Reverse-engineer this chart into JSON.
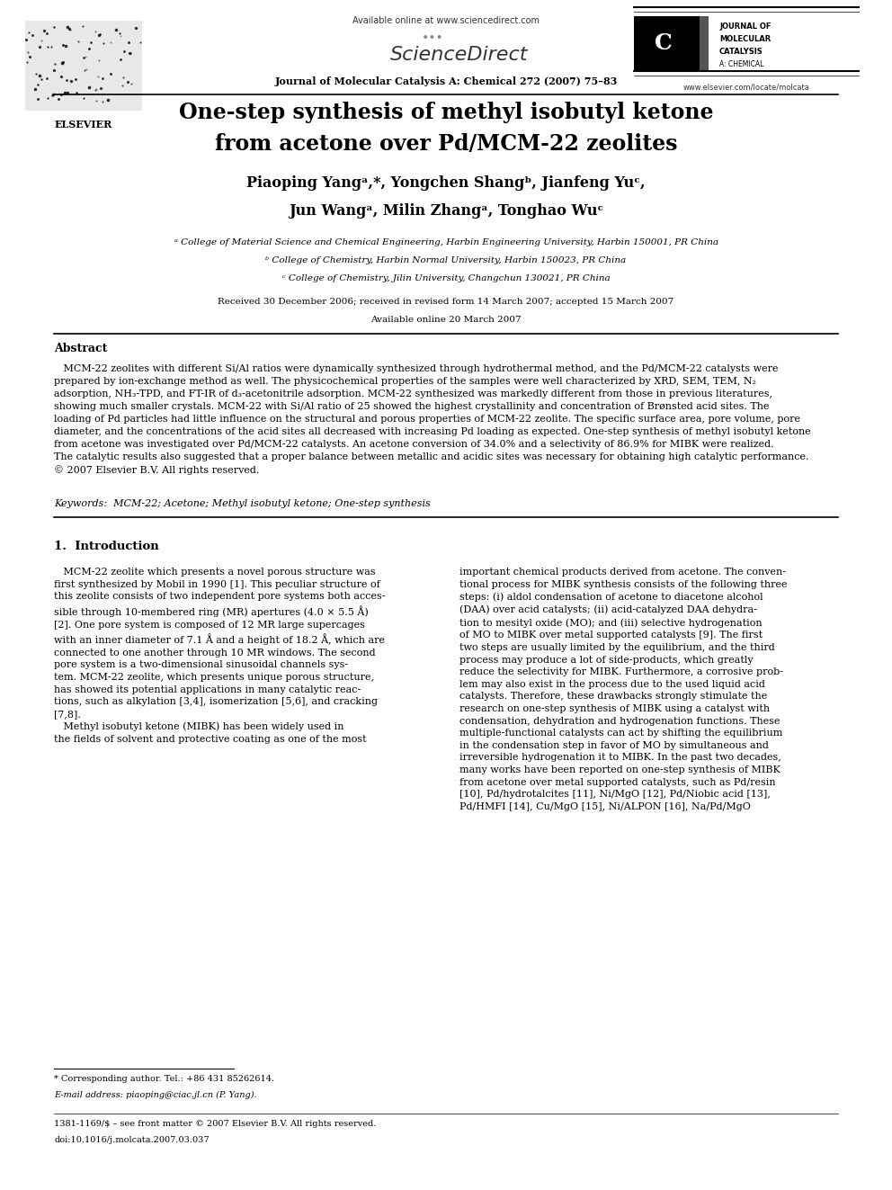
{
  "page_width": 9.92,
  "page_height": 13.23,
  "bg_color": "#ffffff",
  "available_online": "Available online at www.sciencedirect.com",
  "sciencedirect": "ScienceDirect",
  "journal_name": "Journal of Molecular Catalysis A: Chemical 272 (2007) 75–83",
  "journal_right_line1": "JOURNAL OF",
  "journal_right_line2": "MOLECULAR",
  "journal_right_line3": "CATALYSIS",
  "journal_right_line4": "A: CHEMICAL",
  "website": "www.elsevier.com/locate/molcata",
  "elsevier_label": "ELSEVIER",
  "title_line1": "One-step synthesis of methyl isobutyl ketone",
  "title_line2": "from acetone over Pd/MCM-22 zeolites",
  "author_line1": "Piaoping Yangᵃ,*, Yongchen Shangᵇ, Jianfeng Yuᶜ,",
  "author_line2": "Jun Wangᵃ, Milin Zhangᵃ, Tonghao Wuᶜ",
  "affil_a": "ᵃ College of Material Science and Chemical Engineering, Harbin Engineering University, Harbin 150001, PR China",
  "affil_b": "ᵇ College of Chemistry, Harbin Normal University, Harbin 150023, PR China",
  "affil_c": "ᶜ College of Chemistry, Jilin University, Changchun 130021, PR China",
  "received": "Received 30 December 2006; received in revised form 14 March 2007; accepted 15 March 2007",
  "available_date": "Available online 20 March 2007",
  "abstract_title": "Abstract",
  "abstract_body": "   MCM-22 zeolites with different Si/Al ratios were dynamically synthesized through hydrothermal method, and the Pd/MCM-22 catalysts were\nprepared by ion-exchange method as well. The physicochemical properties of the samples were well characterized by XRD, SEM, TEM, N₂\nadsorption, NH₃-TPD, and FT-IR of d₃-acetonitrile adsorption. MCM-22 synthesized was markedly different from those in previous literatures,\nshowing much smaller crystals. MCM-22 with Si/Al ratio of 25 showed the highest crystallinity and concentration of Brønsted acid sites. The\nloading of Pd particles had little influence on the structural and porous properties of MCM-22 zeolite. The specific surface area, pore volume, pore\ndiameter, and the concentrations of the acid sites all decreased with increasing Pd loading as expected. One-step synthesis of methyl isobutyl ketone\nfrom acetone was investigated over Pd/MCM-22 catalysts. An acetone conversion of 34.0% and a selectivity of 86.9% for MIBK were realized.\nThe catalytic results also suggested that a proper balance between metallic and acidic sites was necessary for obtaining high catalytic performance.\n© 2007 Elsevier B.V. All rights reserved.",
  "keywords": "Keywords:  MCM-22; Acetone; Methyl isobutyl ketone; One-step synthesis",
  "section1_title": "1.  Introduction",
  "intro_left": "   MCM-22 zeolite which presents a novel porous structure was\nfirst synthesized by Mobil in 1990 [1]. This peculiar structure of\nthis zeolite consists of two independent pore systems both acces-\nsible through 10-membered ring (MR) apertures (4.0 × 5.5 Å)\n[2]. One pore system is composed of 12 MR large supercages\nwith an inner diameter of 7.1 Å and a height of 18.2 Å, which are\nconnected to one another through 10 MR windows. The second\npore system is a two-dimensional sinusoidal channels sys-\ntem. MCM-22 zeolite, which presents unique porous structure,\nhas showed its potential applications in many catalytic reac-\ntions, such as alkylation [3,4], isomerization [5,6], and cracking\n[7,8].\n   Methyl isobutyl ketone (MIBK) has been widely used in\nthe fields of solvent and protective coating as one of the most",
  "intro_right": "important chemical products derived from acetone. The conven-\ntional process for MIBK synthesis consists of the following three\nsteps: (i) aldol condensation of acetone to diacetone alcohol\n(DAA) over acid catalysts; (ii) acid-catalyzed DAA dehydra-\ntion to mesityl oxide (MO); and (iii) selective hydrogenation\nof MO to MIBK over metal supported catalysts [9]. The first\ntwo steps are usually limited by the equilibrium, and the third\nprocess may produce a lot of side-products, which greatly\nreduce the selectivity for MIBK. Furthermore, a corrosive prob-\nlem may also exist in the process due to the used liquid acid\ncatalysts. Therefore, these drawbacks strongly stimulate the\nresearch on one-step synthesis of MIBK using a catalyst with\ncondensation, dehydration and hydrogenation functions. These\nmultiple-functional catalysts can act by shifting the equilibrium\nin the condensation step in favor of MO by simultaneous and\nirreversible hydrogenation it to MIBK. In the past two decades,\nmany works have been reported on one-step synthesis of MIBK\nfrom acetone over metal supported catalysts, such as Pd/resin\n[10], Pd/hydrotalcites [11], Ni/MgO [12], Pd/Niobic acid [13],\nPd/HMFI [14], Cu/MgO [15], Ni/ALPON [16], Na/Pd/MgO",
  "footnote_star": "* Corresponding author. Tel.: +86 431 85262614.",
  "footnote_email": "E-mail address: piaoping@ciac.jl.cn (P. Yang).",
  "footer_issn": "1381-1169/$ – see front matter © 2007 Elsevier B.V. All rights reserved.",
  "footer_doi": "doi:10.1016/j.molcata.2007.03.037"
}
